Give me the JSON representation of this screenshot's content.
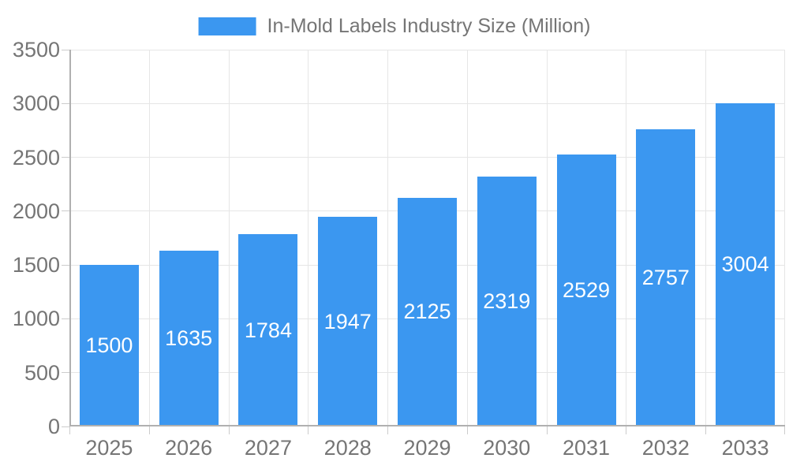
{
  "legend": {
    "label": "In-Mold Labels Industry Size (Million)"
  },
  "chart_data": {
    "type": "bar",
    "title": "",
    "xlabel": "",
    "ylabel": "",
    "categories": [
      "2025",
      "2026",
      "2027",
      "2028",
      "2029",
      "2030",
      "2031",
      "2032",
      "2033"
    ],
    "values": [
      1500,
      1635,
      1784,
      1947,
      2125,
      2319,
      2529,
      2757,
      3004
    ],
    "series_name": "In-Mold Labels Industry Size (Million)",
    "ylim": [
      0,
      3500
    ],
    "yticks": [
      0,
      500,
      1000,
      1500,
      2000,
      2500,
      3000,
      3500
    ],
    "grid": true,
    "value_labels": "inside-center",
    "legend_position": "top-center",
    "colors": {
      "bar": "#3B97F0",
      "bar_label": "#FFFFFF",
      "axis_text": "#757575",
      "gridline": "#E6E6E6",
      "tick": "#CCCCCC",
      "axis_line": "#B0B0B0",
      "background": "#FFFFFF"
    }
  }
}
